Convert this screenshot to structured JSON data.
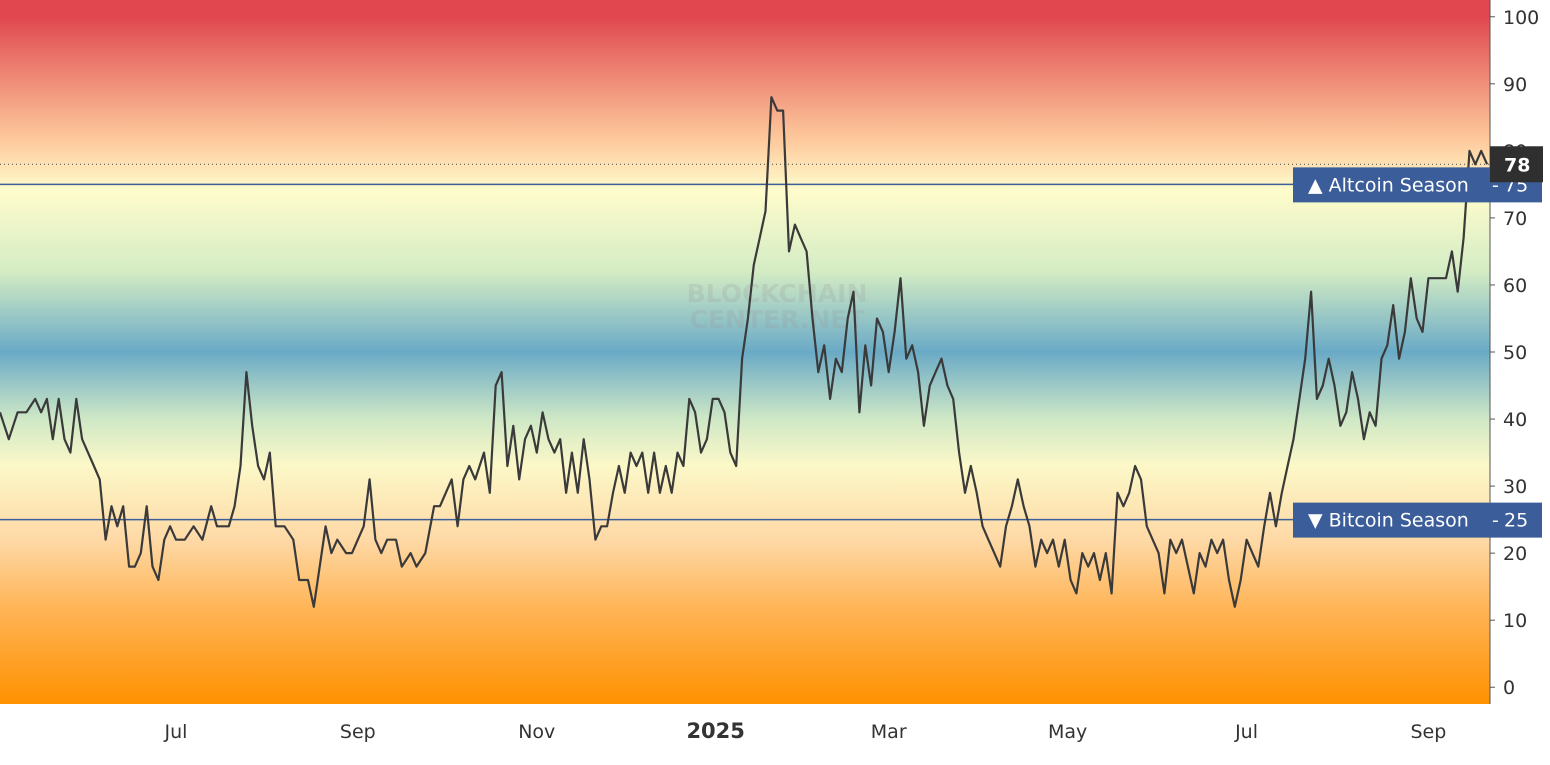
{
  "watermark": [
    "BLOCKCHAIN",
    "CENTER.NET"
  ],
  "chart_data": {
    "type": "line",
    "title": "",
    "xlabel": "",
    "ylabel": "",
    "ylim": [
      -2.5,
      102.5
    ],
    "yticks": [
      0,
      10,
      20,
      30,
      40,
      50,
      60,
      70,
      80,
      90,
      100
    ],
    "x_domain": [
      "2024-05-02",
      "2025-09-22"
    ],
    "xticks": [
      {
        "date": "2024-07-01",
        "label": "Jul",
        "bold": false
      },
      {
        "date": "2024-09-01",
        "label": "Sep",
        "bold": false
      },
      {
        "date": "2024-11-01",
        "label": "Nov",
        "bold": false
      },
      {
        "date": "2025-01-01",
        "label": "2025",
        "bold": true
      },
      {
        "date": "2025-03-01",
        "label": "Mar",
        "bold": false
      },
      {
        "date": "2025-05-01",
        "label": "May",
        "bold": false
      },
      {
        "date": "2025-07-01",
        "label": "Jul",
        "bold": false
      },
      {
        "date": "2025-09-01",
        "label": "Sep",
        "bold": false
      }
    ],
    "background_gradient": [
      {
        "value": 100,
        "color": "#e0474f"
      },
      {
        "value": 90,
        "color": "#f0907a"
      },
      {
        "value": 82,
        "color": "#fdc79a"
      },
      {
        "value": 74,
        "color": "#fffccc"
      },
      {
        "value": 62,
        "color": "#d4ecc4"
      },
      {
        "value": 50,
        "color": "#6aaac6"
      },
      {
        "value": 40,
        "color": "#cfe8c6"
      },
      {
        "value": 33,
        "color": "#fcf8c8"
      },
      {
        "value": 22,
        "color": "#fed9a6"
      },
      {
        "value": 12,
        "color": "#ffb558"
      },
      {
        "value": -2.5,
        "color": "#ff9100"
      }
    ],
    "line_color": "#3a3a3a",
    "current_value": 78,
    "thresholds": [
      {
        "value": 75,
        "label": "▲ Altcoin Season",
        "color": "#3b5d99"
      },
      {
        "value": 25,
        "label": "▼ Bitcoin Season",
        "color": "#3b5d99"
      }
    ],
    "series": [
      {
        "points": [
          [
            "2024-05-02",
            41
          ],
          [
            "2024-05-05",
            37
          ],
          [
            "2024-05-08",
            41
          ],
          [
            "2024-05-11",
            41
          ],
          [
            "2024-05-14",
            43
          ],
          [
            "2024-05-16",
            41
          ],
          [
            "2024-05-18",
            43
          ],
          [
            "2024-05-20",
            37
          ],
          [
            "2024-05-22",
            43
          ],
          [
            "2024-05-24",
            37
          ],
          [
            "2024-05-26",
            35
          ],
          [
            "2024-05-28",
            43
          ],
          [
            "2024-05-30",
            37
          ],
          [
            "2024-06-01",
            35
          ],
          [
            "2024-06-03",
            33
          ],
          [
            "2024-06-05",
            31
          ],
          [
            "2024-06-07",
            22
          ],
          [
            "2024-06-09",
            27
          ],
          [
            "2024-06-11",
            24
          ],
          [
            "2024-06-13",
            27
          ],
          [
            "2024-06-15",
            18
          ],
          [
            "2024-06-17",
            18
          ],
          [
            "2024-06-19",
            20
          ],
          [
            "2024-06-21",
            27
          ],
          [
            "2024-06-23",
            18
          ],
          [
            "2024-06-25",
            16
          ],
          [
            "2024-06-27",
            22
          ],
          [
            "2024-06-29",
            24
          ],
          [
            "2024-07-01",
            22
          ],
          [
            "2024-07-04",
            22
          ],
          [
            "2024-07-07",
            24
          ],
          [
            "2024-07-10",
            22
          ],
          [
            "2024-07-13",
            27
          ],
          [
            "2024-07-15",
            24
          ],
          [
            "2024-07-17",
            24
          ],
          [
            "2024-07-19",
            24
          ],
          [
            "2024-07-21",
            27
          ],
          [
            "2024-07-23",
            33
          ],
          [
            "2024-07-25",
            47
          ],
          [
            "2024-07-27",
            39
          ],
          [
            "2024-07-29",
            33
          ],
          [
            "2024-07-31",
            31
          ],
          [
            "2024-08-02",
            35
          ],
          [
            "2024-08-04",
            24
          ],
          [
            "2024-08-07",
            24
          ],
          [
            "2024-08-10",
            22
          ],
          [
            "2024-08-12",
            16
          ],
          [
            "2024-08-15",
            16
          ],
          [
            "2024-08-17",
            12
          ],
          [
            "2024-08-19",
            18
          ],
          [
            "2024-08-21",
            24
          ],
          [
            "2024-08-23",
            20
          ],
          [
            "2024-08-25",
            22
          ],
          [
            "2024-08-28",
            20
          ],
          [
            "2024-08-30",
            20
          ],
          [
            "2024-09-01",
            22
          ],
          [
            "2024-09-03",
            24
          ],
          [
            "2024-09-05",
            31
          ],
          [
            "2024-09-07",
            22
          ],
          [
            "2024-09-09",
            20
          ],
          [
            "2024-09-11",
            22
          ],
          [
            "2024-09-14",
            22
          ],
          [
            "2024-09-16",
            18
          ],
          [
            "2024-09-19",
            20
          ],
          [
            "2024-09-21",
            18
          ],
          [
            "2024-09-24",
            20
          ],
          [
            "2024-09-27",
            27
          ],
          [
            "2024-09-29",
            27
          ],
          [
            "2024-10-01",
            29
          ],
          [
            "2024-10-03",
            31
          ],
          [
            "2024-10-05",
            24
          ],
          [
            "2024-10-07",
            31
          ],
          [
            "2024-10-09",
            33
          ],
          [
            "2024-10-11",
            31
          ],
          [
            "2024-10-14",
            35
          ],
          [
            "2024-10-16",
            29
          ],
          [
            "2024-10-18",
            45
          ],
          [
            "2024-10-20",
            47
          ],
          [
            "2024-10-22",
            33
          ],
          [
            "2024-10-24",
            39
          ],
          [
            "2024-10-26",
            31
          ],
          [
            "2024-10-28",
            37
          ],
          [
            "2024-10-30",
            39
          ],
          [
            "2024-11-01",
            35
          ],
          [
            "2024-11-03",
            41
          ],
          [
            "2024-11-05",
            37
          ],
          [
            "2024-11-07",
            35
          ],
          [
            "2024-11-09",
            37
          ],
          [
            "2024-11-11",
            29
          ],
          [
            "2024-11-13",
            35
          ],
          [
            "2024-11-15",
            29
          ],
          [
            "2024-11-17",
            37
          ],
          [
            "2024-11-19",
            31
          ],
          [
            "2024-11-21",
            22
          ],
          [
            "2024-11-23",
            24
          ],
          [
            "2024-11-25",
            24
          ],
          [
            "2024-11-27",
            29
          ],
          [
            "2024-11-29",
            33
          ],
          [
            "2024-12-01",
            29
          ],
          [
            "2024-12-03",
            35
          ],
          [
            "2024-12-05",
            33
          ],
          [
            "2024-12-07",
            35
          ],
          [
            "2024-12-09",
            29
          ],
          [
            "2024-12-11",
            35
          ],
          [
            "2024-12-13",
            29
          ],
          [
            "2024-12-15",
            33
          ],
          [
            "2024-12-17",
            29
          ],
          [
            "2024-12-19",
            35
          ],
          [
            "2024-12-21",
            33
          ],
          [
            "2024-12-23",
            43
          ],
          [
            "2024-12-25",
            41
          ],
          [
            "2024-12-27",
            35
          ],
          [
            "2024-12-29",
            37
          ],
          [
            "2024-12-31",
            43
          ],
          [
            "2025-01-02",
            43
          ],
          [
            "2025-01-04",
            41
          ],
          [
            "2025-01-06",
            35
          ],
          [
            "2025-01-08",
            33
          ],
          [
            "2025-01-10",
            49
          ],
          [
            "2025-01-12",
            55
          ],
          [
            "2025-01-14",
            63
          ],
          [
            "2025-01-16",
            67
          ],
          [
            "2025-01-18",
            71
          ],
          [
            "2025-01-20",
            88
          ],
          [
            "2025-01-22",
            86
          ],
          [
            "2025-01-24",
            86
          ],
          [
            "2025-01-26",
            65
          ],
          [
            "2025-01-28",
            69
          ],
          [
            "2025-01-30",
            67
          ],
          [
            "2025-02-01",
            65
          ],
          [
            "2025-02-03",
            55
          ],
          [
            "2025-02-05",
            47
          ],
          [
            "2025-02-07",
            51
          ],
          [
            "2025-02-09",
            43
          ],
          [
            "2025-02-11",
            49
          ],
          [
            "2025-02-13",
            47
          ],
          [
            "2025-02-15",
            55
          ],
          [
            "2025-02-17",
            59
          ],
          [
            "2025-02-19",
            41
          ],
          [
            "2025-02-21",
            51
          ],
          [
            "2025-02-23",
            45
          ],
          [
            "2025-02-25",
            55
          ],
          [
            "2025-02-27",
            53
          ],
          [
            "2025-03-01",
            47
          ],
          [
            "2025-03-03",
            53
          ],
          [
            "2025-03-05",
            61
          ],
          [
            "2025-03-07",
            49
          ],
          [
            "2025-03-09",
            51
          ],
          [
            "2025-03-11",
            47
          ],
          [
            "2025-03-13",
            39
          ],
          [
            "2025-03-15",
            45
          ],
          [
            "2025-03-17",
            47
          ],
          [
            "2025-03-19",
            49
          ],
          [
            "2025-03-21",
            45
          ],
          [
            "2025-03-23",
            43
          ],
          [
            "2025-03-25",
            35
          ],
          [
            "2025-03-27",
            29
          ],
          [
            "2025-03-29",
            33
          ],
          [
            "2025-03-31",
            29
          ],
          [
            "2025-04-02",
            24
          ],
          [
            "2025-04-04",
            22
          ],
          [
            "2025-04-06",
            20
          ],
          [
            "2025-04-08",
            18
          ],
          [
            "2025-04-10",
            24
          ],
          [
            "2025-04-12",
            27
          ],
          [
            "2025-04-14",
            31
          ],
          [
            "2025-04-16",
            27
          ],
          [
            "2025-04-18",
            24
          ],
          [
            "2025-04-20",
            18
          ],
          [
            "2025-04-22",
            22
          ],
          [
            "2025-04-24",
            20
          ],
          [
            "2025-04-26",
            22
          ],
          [
            "2025-04-28",
            18
          ],
          [
            "2025-04-30",
            22
          ],
          [
            "2025-05-02",
            16
          ],
          [
            "2025-05-04",
            14
          ],
          [
            "2025-05-06",
            20
          ],
          [
            "2025-05-08",
            18
          ],
          [
            "2025-05-10",
            20
          ],
          [
            "2025-05-12",
            16
          ],
          [
            "2025-05-14",
            20
          ],
          [
            "2025-05-16",
            14
          ],
          [
            "2025-05-18",
            29
          ],
          [
            "2025-05-20",
            27
          ],
          [
            "2025-05-22",
            29
          ],
          [
            "2025-05-24",
            33
          ],
          [
            "2025-05-26",
            31
          ],
          [
            "2025-05-28",
            24
          ],
          [
            "2025-05-30",
            22
          ],
          [
            "2025-06-01",
            20
          ],
          [
            "2025-06-03",
            14
          ],
          [
            "2025-06-05",
            22
          ],
          [
            "2025-06-07",
            20
          ],
          [
            "2025-06-09",
            22
          ],
          [
            "2025-06-11",
            18
          ],
          [
            "2025-06-13",
            14
          ],
          [
            "2025-06-15",
            20
          ],
          [
            "2025-06-17",
            18
          ],
          [
            "2025-06-19",
            22
          ],
          [
            "2025-06-21",
            20
          ],
          [
            "2025-06-23",
            22
          ],
          [
            "2025-06-25",
            16
          ],
          [
            "2025-06-27",
            12
          ],
          [
            "2025-06-29",
            16
          ],
          [
            "2025-07-01",
            22
          ],
          [
            "2025-07-03",
            20
          ],
          [
            "2025-07-05",
            18
          ],
          [
            "2025-07-07",
            24
          ],
          [
            "2025-07-09",
            29
          ],
          [
            "2025-07-11",
            24
          ],
          [
            "2025-07-13",
            29
          ],
          [
            "2025-07-15",
            33
          ],
          [
            "2025-07-17",
            37
          ],
          [
            "2025-07-19",
            43
          ],
          [
            "2025-07-21",
            49
          ],
          [
            "2025-07-23",
            59
          ],
          [
            "2025-07-25",
            43
          ],
          [
            "2025-07-27",
            45
          ],
          [
            "2025-07-29",
            49
          ],
          [
            "2025-07-31",
            45
          ],
          [
            "2025-08-02",
            39
          ],
          [
            "2025-08-04",
            41
          ],
          [
            "2025-08-06",
            47
          ],
          [
            "2025-08-08",
            43
          ],
          [
            "2025-08-10",
            37
          ],
          [
            "2025-08-12",
            41
          ],
          [
            "2025-08-14",
            39
          ],
          [
            "2025-08-16",
            49
          ],
          [
            "2025-08-18",
            51
          ],
          [
            "2025-08-20",
            57
          ],
          [
            "2025-08-22",
            49
          ],
          [
            "2025-08-24",
            53
          ],
          [
            "2025-08-26",
            61
          ],
          [
            "2025-08-28",
            55
          ],
          [
            "2025-08-30",
            53
          ],
          [
            "2025-09-01",
            61
          ],
          [
            "2025-09-03",
            61
          ],
          [
            "2025-09-05",
            61
          ],
          [
            "2025-09-07",
            61
          ],
          [
            "2025-09-09",
            65
          ],
          [
            "2025-09-11",
            59
          ],
          [
            "2025-09-13",
            67
          ],
          [
            "2025-09-15",
            80
          ],
          [
            "2025-09-17",
            78
          ],
          [
            "2025-09-19",
            80
          ],
          [
            "2025-09-21",
            78
          ]
        ]
      }
    ]
  }
}
